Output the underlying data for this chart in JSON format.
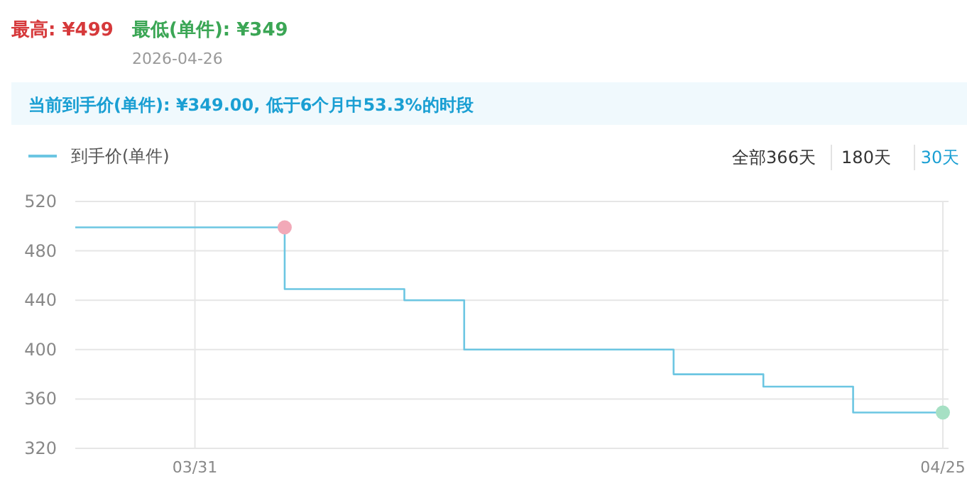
{
  "chart_data": {
    "type": "step",
    "title": "最高: ¥499",
    "subtitle": "最低(单件): ¥349",
    "annotations": [
      "2026-04-26",
      "当前到手价(单件): ¥349.00, 低于6个月中53.3%的时段",
      "全部366天",
      "180天",
      "30天"
    ],
    "x": [
      "--03-27",
      "--04-03",
      "--04-07",
      "--04-09",
      "--04-16",
      "--04-19",
      "--04-22",
      "--04-25"
    ],
    "series": [
      {
        "name": "到手价(单件)",
        "color": "#6cc6e2",
        "marker": "none",
        "values": [
          499,
          449,
          440,
          400,
          380,
          370,
          349,
          349
        ]
      },
      {
        "type": "scatter",
        "marker": "circle",
        "color": "#f2a9b8",
        "x": [
          "--04-03"
        ],
        "values": [
          499
        ]
      },
      {
        "type": "scatter",
        "marker": "circle",
        "color": "#a6e0c4",
        "x": [
          "--04-25"
        ],
        "values": [
          349
        ]
      }
    ],
    "xlim": [
      "--03-27",
      "--04-25"
    ],
    "xticks": [
      {
        "value": "--03-31",
        "label": "03/31"
      },
      {
        "value": "--04-25",
        "label": "04/25"
      }
    ],
    "ylim": [
      320,
      520
    ],
    "yticks": [
      320,
      360,
      400,
      440,
      480,
      520
    ],
    "grid": true,
    "legend": "top left",
    "line_style": "solid"
  }
}
